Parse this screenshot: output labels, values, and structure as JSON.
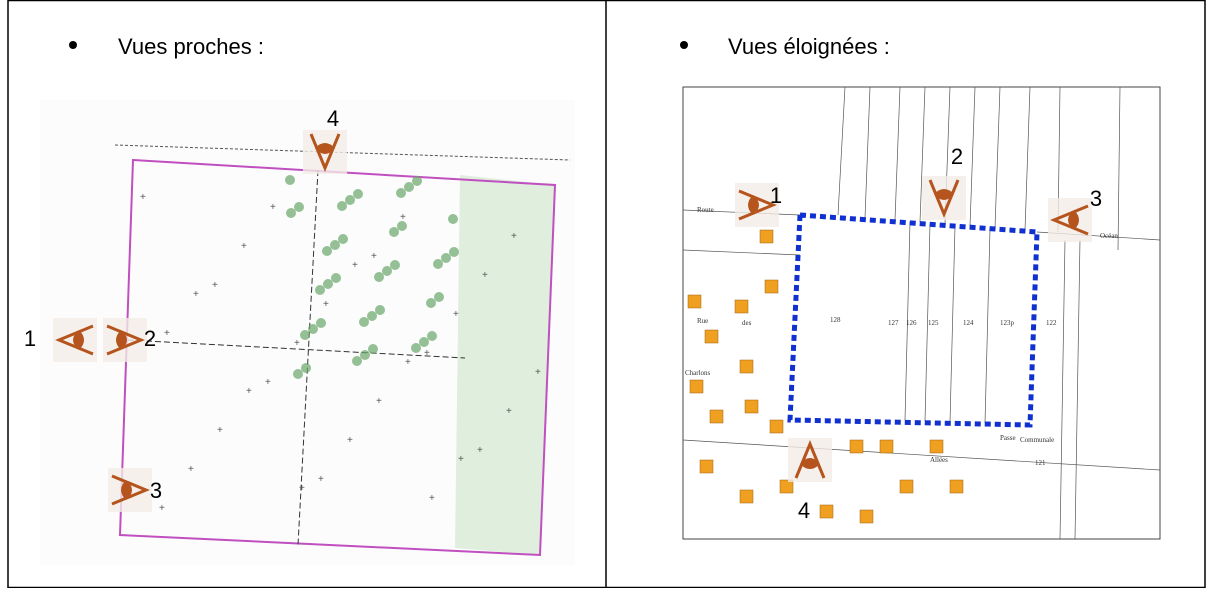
{
  "left": {
    "heading": "Vues proches :",
    "labels": [
      "1",
      "2",
      "3",
      "4"
    ]
  },
  "right": {
    "heading": "Vues éloignées :",
    "labels": [
      "1",
      "2",
      "3",
      "4"
    ],
    "map_texts": [
      "Route",
      "Rue",
      "des",
      "Charlons",
      "Océan",
      "Passe",
      "Communale",
      "Allées",
      "128",
      "127",
      "126",
      "125",
      "124",
      "123p",
      "122",
      "121"
    ]
  }
}
